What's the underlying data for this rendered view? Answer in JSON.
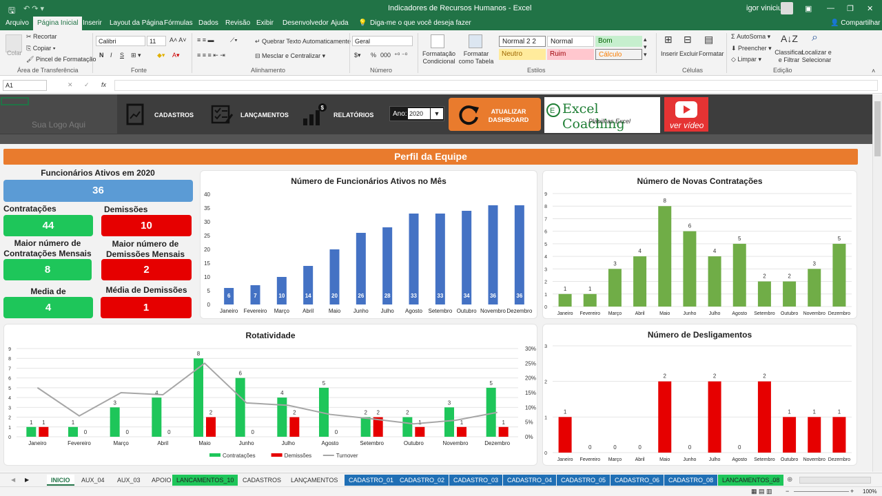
{
  "titlebar": {
    "save_icon": "save-icon",
    "title": "Indicadores de Recursos Humanos  -  Excel",
    "user": "igor vinicius"
  },
  "ribbon_tabs": [
    "Arquivo",
    "Página Inicial",
    "Inserir",
    "Layout da Página",
    "Fórmulas",
    "Dados",
    "Revisão",
    "Exibir",
    "Desenvolvedor",
    "Ajuda"
  ],
  "tell_me": "Diga-me o que você deseja fazer",
  "share": "Compartilhar",
  "clipboard": {
    "paste": "Colar",
    "cut": "Recortar",
    "copy": "Copiar",
    "format_painter": "Pincel de Formatação",
    "group": "Área de Transferência"
  },
  "font": {
    "name": "Calibri",
    "size": "11",
    "bold": "N",
    "italic": "I",
    "underline": "S",
    "group": "Fonte"
  },
  "alignment": {
    "wrap": "Quebrar Texto Automaticamente",
    "merge": "Mesclar e Centralizar",
    "group": "Alinhamento"
  },
  "number": {
    "format": "Geral",
    "pct": "%",
    "thousands": "000",
    "group": "Número"
  },
  "styles": {
    "cond": "Formatação Condicional",
    "table": "Formatar como Tabela",
    "cells": [
      "Normal 2 2",
      "Normal",
      "Bom",
      "Neutro",
      "Ruim",
      "Cálculo"
    ],
    "group": "Estilos"
  },
  "cells": {
    "insert": "Inserir",
    "delete": "Excluir",
    "format": "Formatar",
    "group": "Células"
  },
  "editing": {
    "autosum": "AutoSoma",
    "fill": "Preencher",
    "clear": "Limpar",
    "sort": "Classificar e Filtrar",
    "find": "Localizar e Selecionar",
    "group": "Edição"
  },
  "formula_bar": {
    "name_box": "A1",
    "fx": "fx",
    "cancel": "✕",
    "enter": "✓",
    "value": ""
  },
  "dashboard": {
    "logo_text": "Sua Logo Aqui",
    "nav": {
      "cadastros": "CADASTROS",
      "lancamentos": "LANÇAMENTOS",
      "relatorios": "RELATÓRIOS",
      "year_label": "Ano:",
      "year_value": "2020",
      "refresh": "ATUALIZAR DASHBOARD",
      "brand": "Excel Coaching",
      "brand_sub": "Planilhas Excel",
      "video": "ver vídeo"
    },
    "banner": "Perfil da Equipe",
    "kpis": {
      "active_label": "Funcionários Ativos em 2020",
      "active_value": "36",
      "hires_label": "Contratações",
      "hires_value": "44",
      "exits_label": "Demissões",
      "exits_value": "10",
      "max_hires_label": "Maior número de Contratações Mensais",
      "max_hires_value": "8",
      "max_exits_label": "Maior número de Demissões Mensais",
      "max_exits_value": "2",
      "avg_hires_label": "Media de Contratações",
      "avg_hires_value": "4",
      "avg_exits_label": "Média de Demissões",
      "avg_exits_value": "1"
    }
  },
  "chart_data": [
    {
      "type": "bar",
      "title": "Número de Funcionários Ativos no Mês",
      "categories": [
        "Janeiro",
        "Fevereiro",
        "Março",
        "Abril",
        "Maio",
        "Junho",
        "Julho",
        "Agosto",
        "Setembro",
        "Outubro",
        "Novembro",
        "Dezembro"
      ],
      "values": [
        6,
        7,
        10,
        14,
        20,
        26,
        28,
        33,
        33,
        34,
        36,
        36
      ],
      "ylim": [
        0,
        40
      ],
      "yticks": [
        0,
        5,
        10,
        15,
        20,
        25,
        30,
        35,
        40
      ],
      "color": "#4472c4",
      "grid": false
    },
    {
      "type": "bar",
      "title": "Número de Novas Contratações",
      "categories": [
        "Janeiro",
        "Fevereiro",
        "Março",
        "Abril",
        "Maio",
        "Junho",
        "Julho",
        "Agosto",
        "Setembro",
        "Outubro",
        "Novembro",
        "Dezembro"
      ],
      "values": [
        1,
        1,
        3,
        4,
        8,
        6,
        4,
        5,
        2,
        2,
        3,
        5
      ],
      "ylim": [
        0,
        9
      ],
      "yticks": [
        0,
        1,
        2,
        3,
        4,
        5,
        6,
        7,
        8,
        9
      ],
      "color": "#70ad47",
      "grid": true
    },
    {
      "type": "bar",
      "title": "Rotatividade",
      "categories": [
        "Janeiro",
        "Fevereiro",
        "Março",
        "Abril",
        "Maio",
        "Junho",
        "Julho",
        "Agosto",
        "Setembro",
        "Outubro",
        "Novembro",
        "Dezembro"
      ],
      "series": [
        {
          "name": "Contratações",
          "values": [
            1,
            1,
            3,
            4,
            8,
            6,
            4,
            5,
            2,
            2,
            3,
            5
          ],
          "color": "#1ec65a"
        },
        {
          "name": "Demissões",
          "values": [
            1,
            0,
            0,
            0,
            2,
            0,
            2,
            0,
            2,
            1,
            1,
            1
          ],
          "color": "#e60000"
        },
        {
          "name": "Turnover",
          "type": "line",
          "values": [
            16.7,
            7.1,
            15,
            14.3,
            25,
            11.5,
            10.7,
            7.6,
            6.1,
            4.4,
            5.6,
            8.3
          ],
          "color": "#a6a6a6"
        }
      ],
      "ylim": [
        0,
        9
      ],
      "yticks": [
        0,
        1,
        2,
        3,
        4,
        5,
        6,
        7,
        8,
        9
      ],
      "y2lim": [
        0,
        30
      ],
      "y2ticks": [
        "0%",
        "5%",
        "10%",
        "15%",
        "20%",
        "25%",
        "30%"
      ],
      "legend": "bottom",
      "grid": true
    },
    {
      "type": "bar",
      "title": "Número de Desligamentos",
      "categories": [
        "Janeiro",
        "Fevereiro",
        "Março",
        "Abril",
        "Maio",
        "Junho",
        "Julho",
        "Agosto",
        "Setembro",
        "Outubro",
        "Novembro",
        "Dezembro"
      ],
      "values": [
        1,
        0,
        0,
        0,
        2,
        0,
        2,
        0,
        2,
        1,
        1,
        1
      ],
      "ylim": [
        0,
        3
      ],
      "yticks": [
        0,
        1,
        2,
        3
      ],
      "color": "#e60000",
      "grid": true
    }
  ],
  "sheet_tabs": [
    {
      "label": "INICIO",
      "style": "act"
    },
    {
      "label": "AUX_04",
      "style": ""
    },
    {
      "label": "AUX_03",
      "style": ""
    },
    {
      "label": "APOIO",
      "style": ""
    },
    {
      "label": "LANCAMENTOS_10",
      "style": "grn"
    },
    {
      "label": "CADASTROS",
      "style": ""
    },
    {
      "label": "LANÇAMENTOS",
      "style": ""
    },
    {
      "label": "CADASTRO_01",
      "style": "blue"
    },
    {
      "label": "CADASTRO_02",
      "style": "blue"
    },
    {
      "label": "CADASTRO_03",
      "style": "blue"
    },
    {
      "label": "CADASTRO_04",
      "style": "blue"
    },
    {
      "label": "CADASTRO_05",
      "style": "blue"
    },
    {
      "label": "CADASTRO_06",
      "style": "blue"
    },
    {
      "label": "CADASTRO_08",
      "style": "blue"
    },
    {
      "label": "LANCAMENTOS_08",
      "style": "grn"
    }
  ],
  "status": {
    "zoom": "100%"
  }
}
